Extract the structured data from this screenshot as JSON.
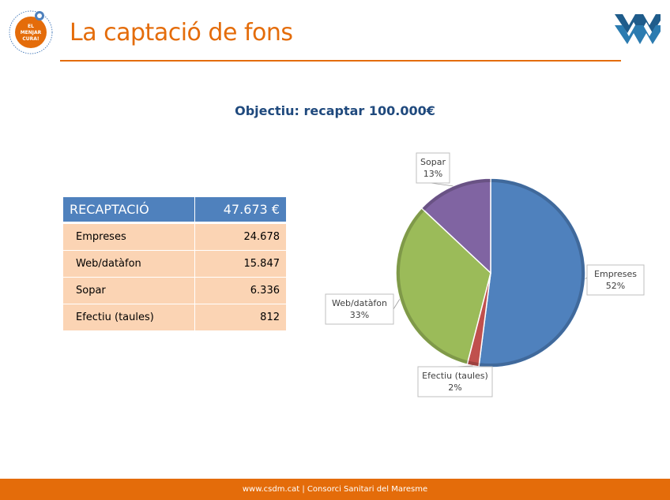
{
  "header": {
    "title": "La captació de fons",
    "logo_left_text": [
      "EL",
      "MENJAR",
      "CURA!"
    ],
    "logo_left_ring_text": "CONCERT DE CAPTACIÓ DE FONS PER A LA JORNADA"
  },
  "subtitle": "Objectiu: recaptar 100.000€",
  "table": {
    "header": {
      "label": "RECAPTACIÓ",
      "value": "47.673 €"
    },
    "rows": [
      {
        "label": "Empreses",
        "value": "24.678"
      },
      {
        "label": "Web/datàfon",
        "value": "15.847"
      },
      {
        "label": "Sopar",
        "value": "6.336"
      },
      {
        "label": "Efectiu (taules)",
        "value": "812"
      }
    ]
  },
  "chart_data": {
    "type": "pie",
    "title": "",
    "slices": [
      {
        "name": "Empreses",
        "value": 52,
        "label": "52%",
        "color": "#4F81BD"
      },
      {
        "name": "Efectiu (taules)",
        "value": 2,
        "label": "2%",
        "color": "#C0504D"
      },
      {
        "name": "Web/datàfon",
        "value": 33,
        "label": "33%",
        "color": "#9BBB59"
      },
      {
        "name": "Sopar",
        "value": 13,
        "label": "13%",
        "color": "#8064A2"
      }
    ],
    "start": "12 o'clock, clockwise",
    "legend": "none (callout labels)"
  },
  "footer": {
    "text": "www.csdm.cat | Consorci Sanitari del Maresme"
  },
  "colors": {
    "accent": "#E46C0A",
    "navy": "#1F497D",
    "header_blue": "#4F81BD",
    "row_peach": "#FBD4B4"
  }
}
